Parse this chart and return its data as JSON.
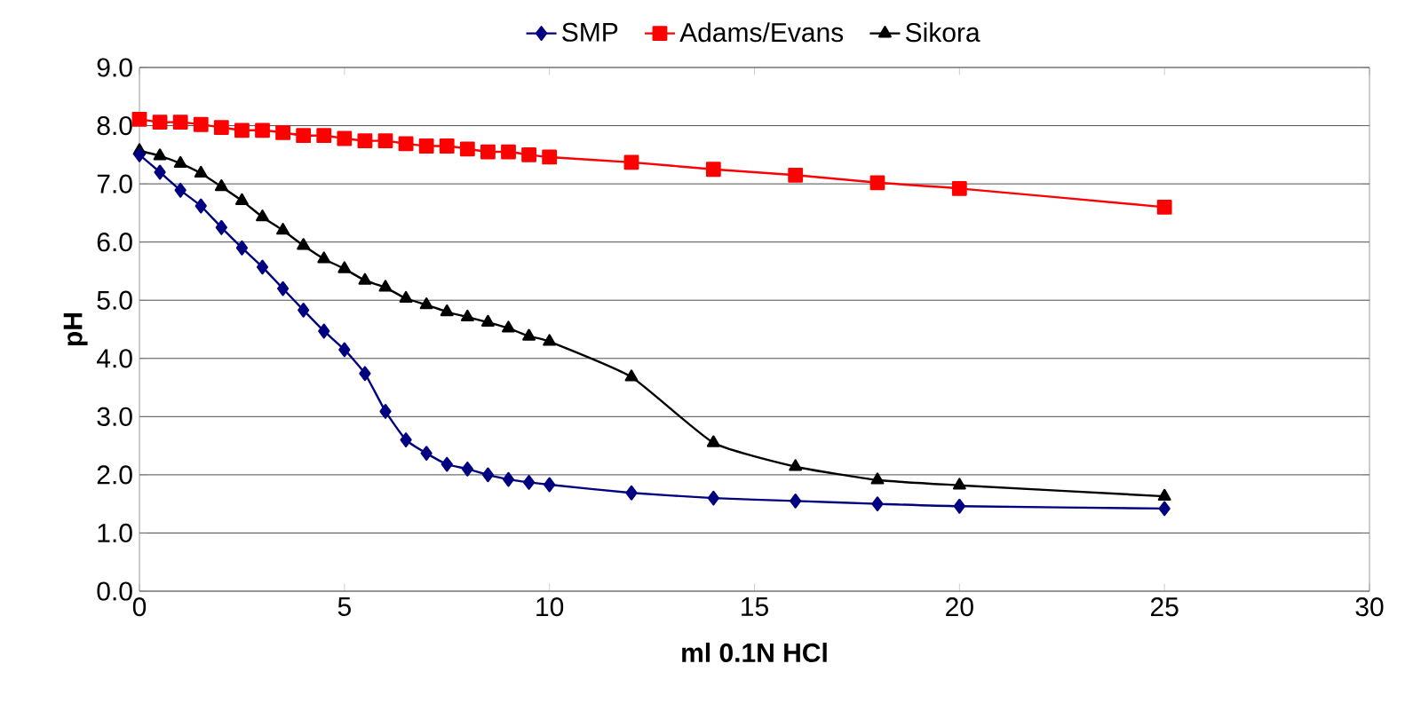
{
  "chart_data": {
    "type": "line",
    "xlabel": "ml 0.1N HCl",
    "ylabel": "pH",
    "xlim": [
      0,
      30
    ],
    "xticks": [
      0,
      5,
      10,
      15,
      20,
      25,
      30
    ],
    "ylim": [
      0,
      9
    ],
    "yticks": [
      {
        "value": 0,
        "label": "0.0"
      },
      {
        "value": 1,
        "label": "1.0"
      },
      {
        "value": 2,
        "label": "2.0"
      },
      {
        "value": 3,
        "label": "3.0"
      },
      {
        "value": 4,
        "label": "4.0"
      },
      {
        "value": 5,
        "label": "5.0"
      },
      {
        "value": 6,
        "label": "6.0"
      },
      {
        "value": 7,
        "label": "7.0"
      },
      {
        "value": 8,
        "label": "8.0"
      },
      {
        "value": 9,
        "label": "9.0"
      }
    ],
    "grid": "y",
    "legend": "top",
    "x": [
      0,
      0.5,
      1,
      1.5,
      2,
      2.5,
      3,
      3.5,
      4,
      4.5,
      5,
      5.5,
      6,
      6.5,
      7,
      7.5,
      8,
      8.5,
      9,
      9.5,
      10,
      12,
      14,
      16,
      18,
      20,
      25
    ],
    "series": [
      {
        "name": "SMP",
        "color": "#000080",
        "marker": "diamond",
        "values": [
          7.5,
          7.2,
          6.89,
          6.62,
          6.25,
          5.9,
          5.57,
          5.2,
          4.83,
          4.47,
          4.15,
          3.74,
          3.09,
          2.6,
          2.37,
          2.18,
          2.1,
          2.0,
          1.92,
          1.87,
          1.83,
          1.69,
          1.6,
          1.55,
          1.5,
          1.46,
          1.42
        ]
      },
      {
        "name": "Adams/Evans",
        "color": "#ff0000",
        "marker": "square",
        "values": [
          8.11,
          8.06,
          8.06,
          8.02,
          7.97,
          7.92,
          7.92,
          7.88,
          7.83,
          7.83,
          7.78,
          7.74,
          7.74,
          7.69,
          7.65,
          7.65,
          7.6,
          7.55,
          7.55,
          7.5,
          7.46,
          7.37,
          7.25,
          7.15,
          7.02,
          6.92,
          6.6
        ]
      },
      {
        "name": "Sikora",
        "color": "#000000",
        "marker": "triangle",
        "values": [
          7.57,
          7.48,
          7.35,
          7.18,
          6.95,
          6.71,
          6.43,
          6.2,
          5.94,
          5.71,
          5.54,
          5.34,
          5.22,
          5.03,
          4.92,
          4.8,
          4.71,
          4.62,
          4.52,
          4.38,
          4.29,
          3.68,
          2.55,
          2.14,
          1.91,
          1.82,
          1.63
        ]
      }
    ]
  }
}
